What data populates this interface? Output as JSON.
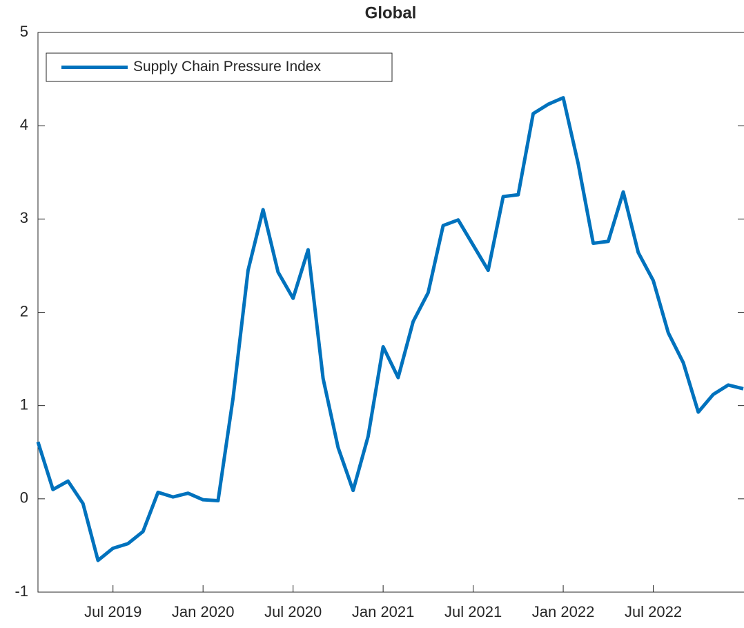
{
  "chart_data": {
    "type": "line",
    "title": "Global",
    "x": [
      "2019-02",
      "2019-03",
      "2019-04",
      "2019-05",
      "2019-06",
      "2019-07",
      "2019-08",
      "2019-09",
      "2019-10",
      "2019-11",
      "2019-12",
      "2020-01",
      "2020-02",
      "2020-03",
      "2020-04",
      "2020-05",
      "2020-06",
      "2020-07",
      "2020-08",
      "2020-09",
      "2020-10",
      "2020-11",
      "2020-12",
      "2021-01",
      "2021-02",
      "2021-03",
      "2021-04",
      "2021-05",
      "2021-06",
      "2021-07",
      "2021-08",
      "2021-09",
      "2021-10",
      "2021-11",
      "2021-12",
      "2022-01",
      "2022-02",
      "2022-03",
      "2022-04",
      "2022-05",
      "2022-06",
      "2022-07",
      "2022-08",
      "2022-09",
      "2022-10",
      "2022-11",
      "2022-12",
      "2023-01"
    ],
    "series": [
      {
        "name": "Supply Chain Pressure Index",
        "color": "#0072bd",
        "values": [
          0.61,
          0.1,
          0.19,
          -0.05,
          -0.66,
          -0.53,
          -0.48,
          -0.35,
          0.07,
          0.02,
          0.06,
          -0.01,
          -0.02,
          1.08,
          2.45,
          3.1,
          2.43,
          2.15,
          2.67,
          1.29,
          0.55,
          0.09,
          0.67,
          1.63,
          1.3,
          1.9,
          2.21,
          2.93,
          2.99,
          2.72,
          2.45,
          3.24,
          3.26,
          4.13,
          4.23,
          4.3,
          3.59,
          2.74,
          2.76,
          3.29,
          2.64,
          2.34,
          1.78,
          1.46,
          0.93,
          1.12,
          1.22,
          1.18
        ]
      }
    ],
    "xlim": [
      "2019-02",
      "2023-01"
    ],
    "xticks": [
      {
        "value": "2019-07",
        "label": "Jul 2019"
      },
      {
        "value": "2020-01",
        "label": "Jan 2020"
      },
      {
        "value": "2020-07",
        "label": "Jul 2020"
      },
      {
        "value": "2021-01",
        "label": "Jan 2021"
      },
      {
        "value": "2021-07",
        "label": "Jul 2021"
      },
      {
        "value": "2022-01",
        "label": "Jan 2022"
      },
      {
        "value": "2022-07",
        "label": "Jul 2022"
      }
    ],
    "ylim": [
      -1,
      5
    ],
    "yticks": [
      -1,
      0,
      1,
      2,
      3,
      4,
      5
    ],
    "legend": "upper left"
  }
}
